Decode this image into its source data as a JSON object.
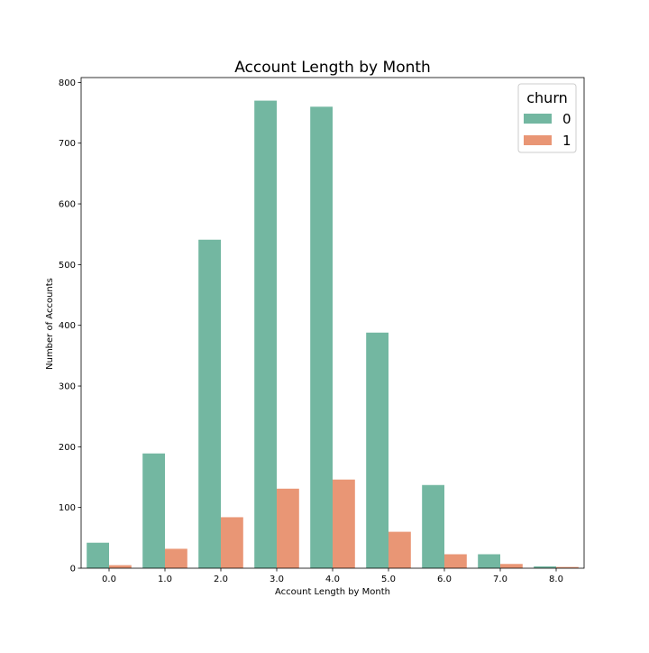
{
  "chart_data": {
    "type": "bar",
    "title": "Account Length by Month",
    "xlabel": "Account Length by Month",
    "ylabel": "Number of Accounts",
    "categories": [
      "0.0",
      "1.0",
      "2.0",
      "3.0",
      "4.0",
      "5.0",
      "6.0",
      "7.0",
      "8.0"
    ],
    "yticks": [
      0,
      100,
      200,
      300,
      400,
      500,
      600,
      700,
      800
    ],
    "ylim": [
      0,
      808
    ],
    "grid": false,
    "legend": {
      "title": "churn",
      "placement": "top-right"
    },
    "series": [
      {
        "name": "0",
        "color": "#73b7a1",
        "values": [
          42,
          189,
          541,
          770,
          760,
          388,
          137,
          23,
          3
        ]
      },
      {
        "name": "1",
        "color": "#e99675",
        "values": [
          5,
          32,
          84,
          131,
          146,
          60,
          23,
          7,
          2
        ]
      }
    ]
  }
}
